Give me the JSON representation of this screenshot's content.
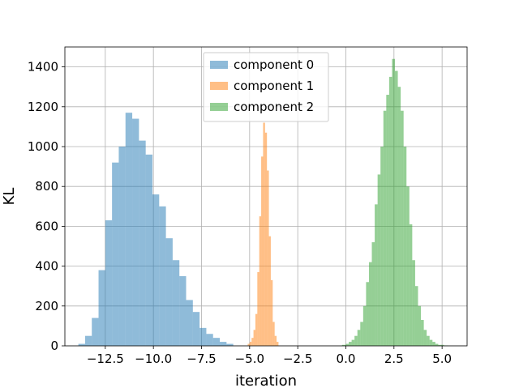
{
  "chart_data": {
    "type": "bar",
    "subtype": "histogram",
    "xlabel": "iteration",
    "ylabel": "KL",
    "xlim": [
      -14.6,
      6.3
    ],
    "ylim": [
      0,
      1500
    ],
    "xticks": [
      -12.5,
      -10.0,
      -7.5,
      -5.0,
      -2.5,
      0.0,
      2.5,
      5.0
    ],
    "xtick_labels": [
      "−12.5",
      "−10.0",
      "−7.5",
      "−5.0",
      "−2.5",
      "0.0",
      "2.5",
      "5.0"
    ],
    "yticks": [
      0,
      200,
      400,
      600,
      800,
      1000,
      1200,
      1400
    ],
    "ytick_labels": [
      "0",
      "200",
      "400",
      "600",
      "800",
      "1000",
      "1200",
      "1400"
    ],
    "grid": true,
    "legend_position": "top-center",
    "series": [
      {
        "name": "component 0",
        "color": "#1f77b4",
        "alpha": 0.5,
        "bin_edges": [
          -13.9,
          -13.55,
          -13.2,
          -12.85,
          -12.5,
          -12.15,
          -11.8,
          -11.45,
          -11.1,
          -10.75,
          -10.4,
          -10.05,
          -9.7,
          -9.35,
          -9.0,
          -8.65,
          -8.3,
          -7.95,
          -7.6,
          -7.25,
          -6.9,
          -6.55,
          -6.2,
          -5.85
        ],
        "counts": [
          10,
          50,
          140,
          380,
          630,
          920,
          1000,
          1170,
          1140,
          1030,
          960,
          760,
          700,
          540,
          430,
          350,
          230,
          170,
          90,
          60,
          40,
          20,
          10
        ]
      },
      {
        "name": "component 1",
        "color": "#ff7f0e",
        "alpha": 0.5,
        "bin_edges": [
          -5.1,
          -5.0,
          -4.9,
          -4.8,
          -4.7,
          -4.6,
          -4.5,
          -4.4,
          -4.3,
          -4.2,
          -4.1,
          -4.0,
          -3.9,
          -3.8,
          -3.7,
          -3.6,
          -3.5
        ],
        "counts": [
          10,
          20,
          40,
          80,
          160,
          370,
          650,
          950,
          1120,
          1070,
          880,
          550,
          330,
          120,
          50,
          20
        ]
      },
      {
        "name": "component 2",
        "color": "#2ca02c",
        "alpha": 0.5,
        "bin_edges": [
          -0.2,
          0.0,
          0.15,
          0.3,
          0.45,
          0.6,
          0.75,
          0.9,
          1.05,
          1.2,
          1.35,
          1.5,
          1.65,
          1.8,
          1.95,
          2.1,
          2.25,
          2.4,
          2.55,
          2.7,
          2.85,
          3.0,
          3.15,
          3.3,
          3.45,
          3.6,
          3.75,
          3.9,
          4.05,
          4.2,
          4.35,
          4.5,
          4.65,
          4.8,
          4.95,
          5.1,
          5.3
        ],
        "counts": [
          5,
          10,
          20,
          30,
          50,
          80,
          120,
          200,
          320,
          420,
          520,
          710,
          860,
          1000,
          1180,
          1260,
          1350,
          1440,
          1380,
          1300,
          1180,
          1000,
          800,
          610,
          430,
          300,
          200,
          130,
          80,
          50,
          30,
          20,
          10,
          5,
          5,
          2
        ]
      }
    ]
  }
}
